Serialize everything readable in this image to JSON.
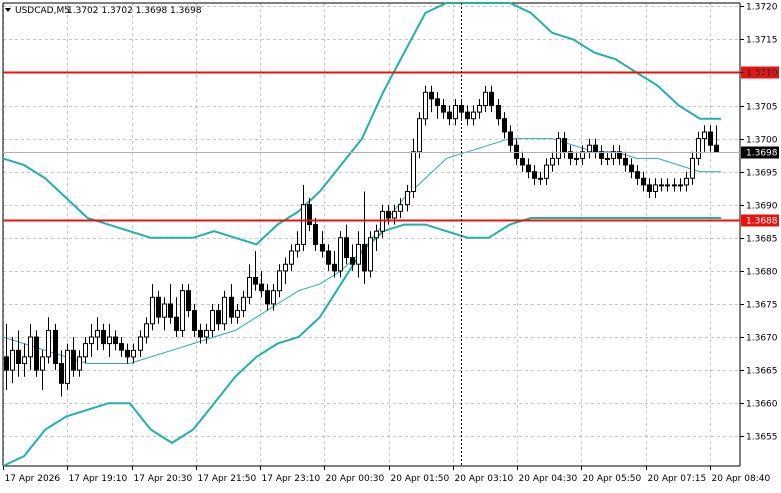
{
  "header": {
    "symbol": "USDCAD,M5",
    "ohlc": "1.3702 1.3702 1.3698 1.3698"
  },
  "colors": {
    "background": "#ffffff",
    "grid": "#c8c8c8",
    "candle": "#000000",
    "bollinger": "#20b2aa",
    "level_line": "#e8130f",
    "level_label_bg": "#e8130f",
    "price_label_bg": "#000000",
    "crosshair": "#000000"
  },
  "chart_data": {
    "type": "candlestick",
    "title": "USDCAD,M5",
    "ylim": [
      1.36505,
      1.37205
    ],
    "y_ticks": [
      "1.3720",
      "1.3715",
      "1.3710",
      "1.3705",
      "1.3700",
      "1.3695",
      "1.3690",
      "1.3685",
      "1.3680",
      "1.3675",
      "1.3670",
      "1.3665",
      "1.3660",
      "1.3655"
    ],
    "x_ticks": [
      "17 Apr 2026",
      "17 Apr 19:10",
      "17 Apr 20:30",
      "17 Apr 21:50",
      "17 Apr 23:10",
      "20 Apr 00:30",
      "20 Apr 01:50",
      "20 Apr 03:10",
      "20 Apr 04:30",
      "20 Apr 05:50",
      "20 Apr 07:15",
      "20 Apr 08:40"
    ],
    "levels": [
      {
        "label": "1.3710",
        "value": 1.371
      },
      {
        "label": "1.3688",
        "value": 1.36877
      }
    ],
    "current_price": {
      "label": "1.3698",
      "value": 1.3698
    },
    "crosshair_x_index": 75,
    "candles": [
      [
        1.3667,
        1.3672,
        1.3662,
        1.3665
      ],
      [
        1.3665,
        1.367,
        1.3663,
        1.3668
      ],
      [
        1.3668,
        1.3671,
        1.3664,
        1.3666
      ],
      [
        1.3666,
        1.3669,
        1.3664,
        1.3667
      ],
      [
        1.3667,
        1.3672,
        1.3665,
        1.367
      ],
      [
        1.367,
        1.3671,
        1.3664,
        1.3665
      ],
      [
        1.3665,
        1.3668,
        1.3662,
        1.3667
      ],
      [
        1.3667,
        1.3673,
        1.3666,
        1.3671
      ],
      [
        1.3671,
        1.3672,
        1.3665,
        1.3666
      ],
      [
        1.3666,
        1.3668,
        1.3661,
        1.3663
      ],
      [
        1.3663,
        1.3669,
        1.3662,
        1.3668
      ],
      [
        1.3668,
        1.367,
        1.3664,
        1.3665
      ],
      [
        1.3665,
        1.3668,
        1.3664,
        1.3667
      ],
      [
        1.3667,
        1.367,
        1.3666,
        1.3669
      ],
      [
        1.3669,
        1.3672,
        1.3667,
        1.367
      ],
      [
        1.367,
        1.3673,
        1.3668,
        1.3671
      ],
      [
        1.3671,
        1.3672,
        1.3668,
        1.3669
      ],
      [
        1.3669,
        1.3672,
        1.3667,
        1.367
      ],
      [
        1.367,
        1.3671,
        1.3668,
        1.3669
      ],
      [
        1.3669,
        1.367,
        1.3667,
        1.3668
      ],
      [
        1.3668,
        1.3669,
        1.3666,
        1.3667
      ],
      [
        1.3667,
        1.3669,
        1.3666,
        1.3668
      ],
      [
        1.3668,
        1.3671,
        1.3667,
        1.367
      ],
      [
        1.367,
        1.3673,
        1.3669,
        1.3672
      ],
      [
        1.3672,
        1.3678,
        1.3671,
        1.3676
      ],
      [
        1.3676,
        1.3677,
        1.3672,
        1.3673
      ],
      [
        1.3673,
        1.3676,
        1.3671,
        1.3675
      ],
      [
        1.3675,
        1.3678,
        1.3672,
        1.3673
      ],
      [
        1.3673,
        1.3676,
        1.367,
        1.3671
      ],
      [
        1.3671,
        1.3678,
        1.367,
        1.3677
      ],
      [
        1.3677,
        1.3678,
        1.3673,
        1.3674
      ],
      [
        1.3674,
        1.3675,
        1.367,
        1.3671
      ],
      [
        1.3671,
        1.3672,
        1.3669,
        1.367
      ],
      [
        1.367,
        1.3672,
        1.3669,
        1.3671
      ],
      [
        1.3671,
        1.3675,
        1.367,
        1.3674
      ],
      [
        1.3674,
        1.3675,
        1.3671,
        1.3672
      ],
      [
        1.3672,
        1.3677,
        1.3671,
        1.3676
      ],
      [
        1.3676,
        1.3678,
        1.3672,
        1.3673
      ],
      [
        1.3673,
        1.3675,
        1.3672,
        1.3674
      ],
      [
        1.3674,
        1.3677,
        1.3673,
        1.3676
      ],
      [
        1.3676,
        1.3681,
        1.3675,
        1.3679
      ],
      [
        1.3679,
        1.3683,
        1.3677,
        1.3678
      ],
      [
        1.3678,
        1.368,
        1.3676,
        1.3677
      ],
      [
        1.3677,
        1.3678,
        1.3674,
        1.3675
      ],
      [
        1.3675,
        1.3678,
        1.3674,
        1.3677
      ],
      [
        1.3677,
        1.3681,
        1.3676,
        1.368
      ],
      [
        1.368,
        1.3682,
        1.3678,
        1.3681
      ],
      [
        1.3681,
        1.3684,
        1.368,
        1.3683
      ],
      [
        1.3683,
        1.3686,
        1.3682,
        1.3684
      ],
      [
        1.3684,
        1.3693,
        1.3683,
        1.369
      ],
      [
        1.369,
        1.3691,
        1.3686,
        1.3687
      ],
      [
        1.3687,
        1.3688,
        1.3683,
        1.3684
      ],
      [
        1.3684,
        1.3686,
        1.3682,
        1.3683
      ],
      [
        1.3683,
        1.3684,
        1.368,
        1.3681
      ],
      [
        1.3681,
        1.3683,
        1.3679,
        1.368
      ],
      [
        1.368,
        1.3686,
        1.3679,
        1.3685
      ],
      [
        1.3685,
        1.3687,
        1.3681,
        1.3682
      ],
      [
        1.3682,
        1.3684,
        1.368,
        1.3681
      ],
      [
        1.3681,
        1.3686,
        1.3679,
        1.3684
      ],
      [
        1.3684,
        1.3692,
        1.3678,
        1.368
      ],
      [
        1.368,
        1.3686,
        1.3679,
        1.3685
      ],
      [
        1.3685,
        1.3687,
        1.3683,
        1.3686
      ],
      [
        1.3686,
        1.369,
        1.3685,
        1.3689
      ],
      [
        1.3689,
        1.369,
        1.3687,
        1.3688
      ],
      [
        1.3688,
        1.369,
        1.3687,
        1.3689
      ],
      [
        1.3689,
        1.3691,
        1.3688,
        1.369
      ],
      [
        1.369,
        1.3693,
        1.3689,
        1.3692
      ],
      [
        1.3692,
        1.37,
        1.3691,
        1.3698
      ],
      [
        1.3698,
        1.3704,
        1.3697,
        1.3703
      ],
      [
        1.3703,
        1.3708,
        1.3702,
        1.3707
      ],
      [
        1.3707,
        1.3708,
        1.3704,
        1.3706
      ],
      [
        1.3706,
        1.3707,
        1.3703,
        1.3705
      ],
      [
        1.3705,
        1.3706,
        1.3703,
        1.3704
      ],
      [
        1.3704,
        1.3705,
        1.3702,
        1.3703
      ],
      [
        1.3703,
        1.3706,
        1.3702,
        1.3705
      ],
      [
        1.3705,
        1.3706,
        1.3703,
        1.3704
      ],
      [
        1.3704,
        1.3705,
        1.3702,
        1.3703
      ],
      [
        1.3703,
        1.3705,
        1.3702,
        1.3704
      ],
      [
        1.3704,
        1.3706,
        1.3703,
        1.3705
      ],
      [
        1.3705,
        1.3708,
        1.3704,
        1.3707
      ],
      [
        1.3707,
        1.3708,
        1.3704,
        1.3705
      ],
      [
        1.3705,
        1.3706,
        1.3702,
        1.3703
      ],
      [
        1.3703,
        1.3704,
        1.37,
        1.3701
      ],
      [
        1.3701,
        1.3702,
        1.3698,
        1.3699
      ],
      [
        1.3699,
        1.37,
        1.3696,
        1.3697
      ],
      [
        1.3697,
        1.3698,
        1.3695,
        1.3696
      ],
      [
        1.3696,
        1.3697,
        1.3694,
        1.3695
      ],
      [
        1.3695,
        1.3696,
        1.3693,
        1.3694
      ],
      [
        1.3694,
        1.3695,
        1.3693,
        1.3694
      ],
      [
        1.3694,
        1.3697,
        1.3693,
        1.3696
      ],
      [
        1.3696,
        1.3698,
        1.3695,
        1.3697
      ],
      [
        1.3697,
        1.3701,
        1.3696,
        1.37
      ],
      [
        1.37,
        1.3701,
        1.3697,
        1.3698
      ],
      [
        1.3698,
        1.3699,
        1.3696,
        1.3697
      ],
      [
        1.3697,
        1.3698,
        1.3696,
        1.3697
      ],
      [
        1.3697,
        1.3699,
        1.3696,
        1.3698
      ],
      [
        1.3698,
        1.37,
        1.3697,
        1.3699
      ],
      [
        1.3699,
        1.37,
        1.3697,
        1.3698
      ],
      [
        1.3698,
        1.3699,
        1.3696,
        1.3697
      ],
      [
        1.3697,
        1.3698,
        1.3696,
        1.3697
      ],
      [
        1.3697,
        1.3699,
        1.3696,
        1.3698
      ],
      [
        1.3698,
        1.3699,
        1.3696,
        1.3697
      ],
      [
        1.3697,
        1.3698,
        1.3695,
        1.3696
      ],
      [
        1.3696,
        1.3697,
        1.3694,
        1.3695
      ],
      [
        1.3695,
        1.3696,
        1.3693,
        1.3694
      ],
      [
        1.3694,
        1.3695,
        1.3692,
        1.3693
      ],
      [
        1.3693,
        1.3694,
        1.3691,
        1.3692
      ],
      [
        1.3692,
        1.3694,
        1.3691,
        1.3693
      ],
      [
        1.3693,
        1.3694,
        1.3692,
        1.3693
      ],
      [
        1.3693,
        1.3694,
        1.3692,
        1.3693
      ],
      [
        1.3693,
        1.3694,
        1.3692,
        1.3693
      ],
      [
        1.3693,
        1.3694,
        1.3692,
        1.3693
      ],
      [
        1.3693,
        1.3695,
        1.3692,
        1.3694
      ],
      [
        1.3694,
        1.3698,
        1.3693,
        1.3697
      ],
      [
        1.3697,
        1.3701,
        1.3696,
        1.37
      ],
      [
        1.37,
        1.3702,
        1.3698,
        1.3701
      ],
      [
        1.3701,
        1.3702,
        1.3698,
        1.3699
      ],
      [
        1.3699,
        1.3702,
        1.3698,
        1.3698
      ]
    ],
    "bollinger_upper": [
      1.3697,
      1.3696,
      1.3694,
      1.3691,
      1.3688,
      1.3687,
      1.3686,
      1.3685,
      1.3685,
      1.3685,
      1.3686,
      1.3685,
      1.3684,
      1.3687,
      1.3689,
      1.3692,
      1.3696,
      1.37,
      1.3707,
      1.3713,
      1.3719,
      1.3721,
      1.3721,
      1.3721,
      1.3721,
      1.3719,
      1.3716,
      1.3715,
      1.3713,
      1.3712,
      1.371,
      1.3708,
      1.3705,
      1.3703,
      1.3703
    ],
    "bollinger_middle": [
      1.367,
      1.3669,
      1.3668,
      1.3667,
      1.3666,
      1.3666,
      1.3666,
      1.3667,
      1.3668,
      1.3669,
      1.367,
      1.3671,
      1.3673,
      1.3675,
      1.3677,
      1.3678,
      1.368,
      1.3683,
      1.3687,
      1.3691,
      1.3694,
      1.3697,
      1.3698,
      1.3699,
      1.37,
      1.37,
      1.37,
      1.3699,
      1.3698,
      1.3698,
      1.3697,
      1.3697,
      1.3696,
      1.3695,
      1.3695
    ],
    "bollinger_lower": [
      1.3648,
      1.3652,
      1.3656,
      1.3658,
      1.3659,
      1.366,
      1.366,
      1.3656,
      1.3654,
      1.3656,
      1.366,
      1.3664,
      1.3667,
      1.3669,
      1.367,
      1.3673,
      1.3678,
      1.3683,
      1.3686,
      1.3687,
      1.3687,
      1.3686,
      1.3685,
      1.3685,
      1.3687,
      1.3688,
      1.3688,
      1.3688,
      1.3688,
      1.3688,
      1.3688,
      1.3688,
      1.3688,
      1.3688,
      1.3688
    ],
    "grid": true
  }
}
